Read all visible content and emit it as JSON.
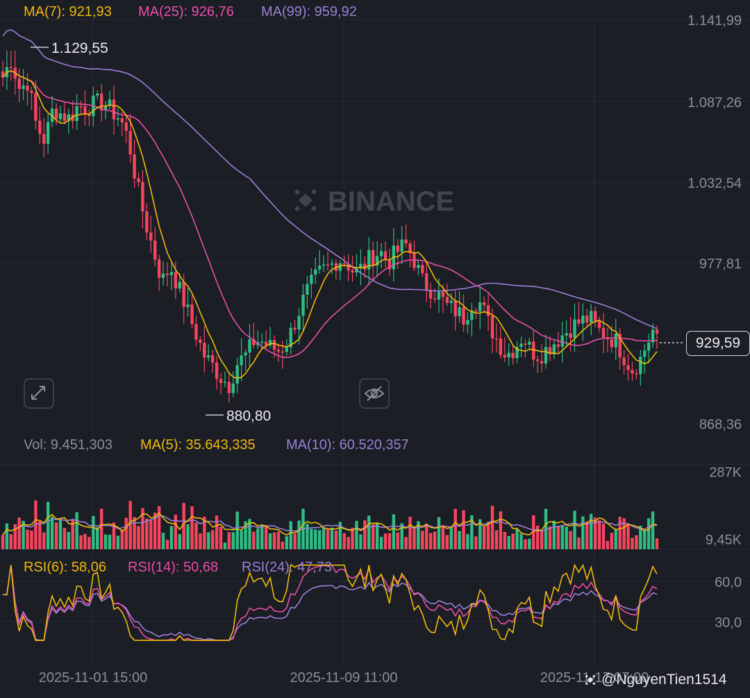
{
  "header": {
    "ma7": "MA(7): 921,93",
    "ma25": "MA(25): 926,76",
    "ma99": "MA(99): 959,92"
  },
  "price_axis": [
    "1.141,99",
    "1.087,26",
    "1.032,54",
    "977,81",
    "868,36"
  ],
  "annotations": {
    "high": "1.129,55",
    "low": "880,80",
    "current_price": "929,59"
  },
  "watermark_logo": "BINANCE",
  "volume_header": {
    "vol": "Vol: 9.451,303",
    "ma5": "MA(5): 35.643,335",
    "ma10": "MA(10): 60.520,357"
  },
  "volume_axis": [
    "287K",
    "9,45K"
  ],
  "rsi_header": {
    "rsi6": "RSI(6): 58,06",
    "rsi14": "RSI(14): 50,68",
    "rsi24": "RSI(24): 47,73"
  },
  "rsi_axis": [
    "60,0",
    "30,0"
  ],
  "time_axis": [
    "2025-11-01 15:00",
    "2025-11-09 11:00",
    "2025-11-17 07:00"
  ],
  "credit": "@NguyenTien1514",
  "colors": {
    "up": "#2ebd85",
    "down": "#f6465d",
    "ma7": "#f0b90b",
    "ma25": "#e84fa8",
    "ma99": "#9b7fd6",
    "background": "#1b1e25",
    "text": "#8a8f98",
    "grid": "#262a33"
  },
  "icons": [
    "expand-icon",
    "eye-off-icon",
    "binance-logo-icon"
  ],
  "chart_data": {
    "type": "candlestick",
    "price_range": [
      868.36,
      1141.99
    ],
    "high": 1129.55,
    "low": 880.8,
    "last": 929.59,
    "price_path": [
      1103,
      1115,
      1095,
      1100,
      1070,
      1060,
      1082,
      1078,
      1075,
      1084,
      1082,
      1085,
      1086,
      1080,
      1075,
      1060,
      1030,
      1005,
      985,
      965,
      975,
      960,
      945,
      930,
      915,
      908,
      900,
      895,
      910,
      915,
      925,
      924,
      920,
      918,
      925,
      940,
      955,
      965,
      972,
      975,
      980,
      978,
      970,
      975,
      982,
      985,
      978,
      985,
      990,
      980,
      965,
      960,
      955,
      948,
      945,
      940,
      952,
      950,
      935,
      925,
      915,
      920,
      928,
      918,
      915,
      920,
      925,
      930,
      935,
      938,
      940,
      932,
      928,
      925,
      915,
      905,
      912,
      925,
      938
    ],
    "ma_values": {
      "ma7": 921.93,
      "ma25": 926.76,
      "ma99": 959.92
    },
    "volume_range": [
      9450,
      287000
    ],
    "rsi_range": [
      30,
      60
    ]
  }
}
